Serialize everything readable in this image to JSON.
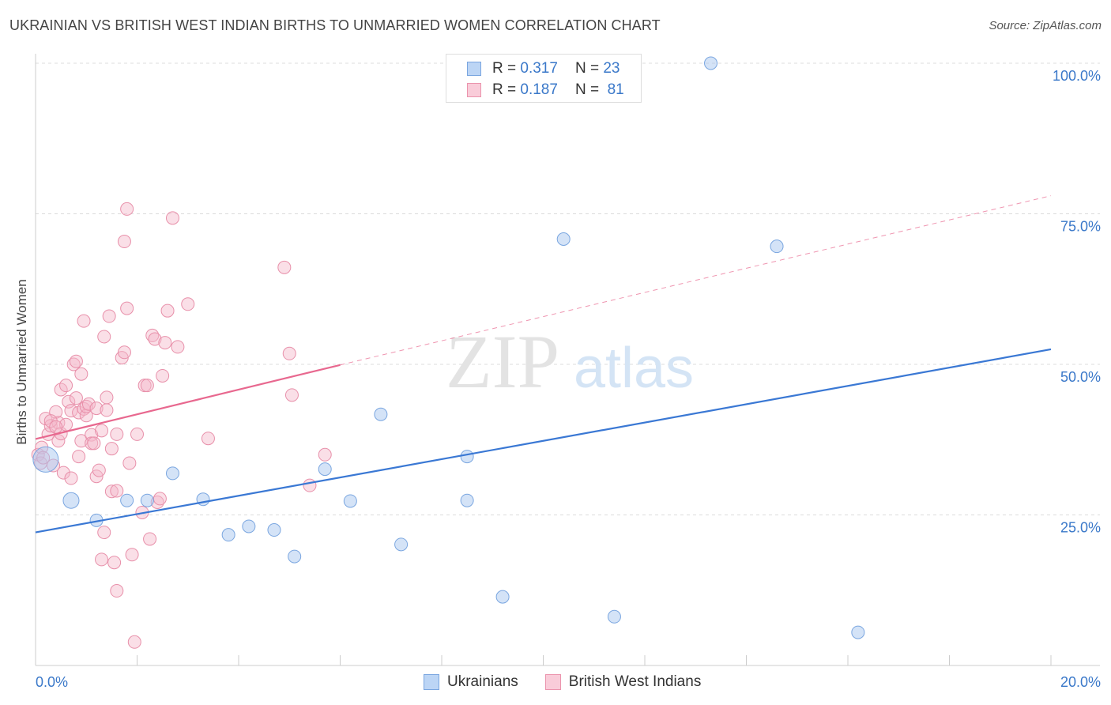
{
  "header": {
    "title": "UKRAINIAN VS BRITISH WEST INDIAN BIRTHS TO UNMARRIED WOMEN CORRELATION CHART",
    "source": "Source: ZipAtlas.com"
  },
  "watermark": {
    "zip": "ZIP",
    "atlas": "atlas"
  },
  "legend": {
    "rows": [
      {
        "r_label": "R =",
        "r_value": "0.317",
        "n_label": "N =",
        "n_value": "23",
        "color": "#a9c8f0"
      },
      {
        "r_label": "R =",
        "r_value": "0.187",
        "n_label": "N =",
        "n_value": "81",
        "color": "#f5b8ca"
      }
    ]
  },
  "bottom_legend": {
    "items": [
      "Ukrainians",
      "British West Indians"
    ]
  },
  "chart_data": {
    "type": "scatter",
    "title": "UKRAINIAN VS BRITISH WEST INDIAN BIRTHS TO UNMARRIED WOMEN CORRELATION CHART",
    "xlabel": "",
    "ylabel": "Births to Unmarried Women",
    "xlim": [
      0,
      20
    ],
    "ylim": [
      0,
      100
    ],
    "x_tick_labels": [
      "0.0%",
      "20.0%"
    ],
    "y_ticks": [
      25,
      50,
      75,
      100
    ],
    "y_tick_labels": [
      "25.0%",
      "50.0%",
      "75.0%",
      "100.0%"
    ],
    "grid": true,
    "legend_position": "top-center",
    "series": [
      {
        "name": "Ukrainians",
        "color": "#3a78d4",
        "fill": "#a9c8f0",
        "points": [
          [
            0.2,
            34.2
          ],
          [
            0.7,
            27.4
          ],
          [
            1.2,
            24.1
          ],
          [
            1.8,
            27.4
          ],
          [
            2.2,
            27.4
          ],
          [
            2.7,
            31.9
          ],
          [
            3.3,
            27.6
          ],
          [
            3.8,
            21.7
          ],
          [
            4.2,
            23.1
          ],
          [
            4.7,
            22.5
          ],
          [
            5.1,
            18.1
          ],
          [
            5.7,
            32.6
          ],
          [
            6.2,
            27.3
          ],
          [
            6.8,
            41.7
          ],
          [
            7.2,
            20.1
          ],
          [
            8.5,
            34.7
          ],
          [
            8.5,
            27.4
          ],
          [
            9.2,
            11.4
          ],
          [
            10.4,
            70.8
          ],
          [
            11.4,
            8.1
          ],
          [
            13.3,
            100.0
          ],
          [
            14.6,
            69.6
          ],
          [
            16.2,
            5.5
          ]
        ],
        "trend": {
          "x": [
            0,
            20
          ],
          "y": [
            22.1,
            52.5
          ]
        }
      },
      {
        "name": "British West Indians",
        "color": "#e8688f",
        "fill": "#f5b8ca",
        "points": [
          [
            0.05,
            35.0
          ],
          [
            0.1,
            33.6
          ],
          [
            0.12,
            36.2
          ],
          [
            0.15,
            34.5
          ],
          [
            0.2,
            41.0
          ],
          [
            0.25,
            38.4
          ],
          [
            0.3,
            39.8
          ],
          [
            0.35,
            33.2
          ],
          [
            0.4,
            42.1
          ],
          [
            0.45,
            40.3
          ],
          [
            0.45,
            37.3
          ],
          [
            0.5,
            38.5
          ],
          [
            0.5,
            45.8
          ],
          [
            0.55,
            32.0
          ],
          [
            0.6,
            40.0
          ],
          [
            0.6,
            46.5
          ],
          [
            0.65,
            43.8
          ],
          [
            0.7,
            31.1
          ],
          [
            0.7,
            42.3
          ],
          [
            0.75,
            50.0
          ],
          [
            0.8,
            50.5
          ],
          [
            0.8,
            44.4
          ],
          [
            0.85,
            34.7
          ],
          [
            0.85,
            42.0
          ],
          [
            0.9,
            37.3
          ],
          [
            0.9,
            48.4
          ],
          [
            0.95,
            57.2
          ],
          [
            0.95,
            42.6
          ],
          [
            1.0,
            41.5
          ],
          [
            1.0,
            43.0
          ],
          [
            1.05,
            43.4
          ],
          [
            1.1,
            38.3
          ],
          [
            1.1,
            36.9
          ],
          [
            1.15,
            36.9
          ],
          [
            1.2,
            42.7
          ],
          [
            1.2,
            31.4
          ],
          [
            1.25,
            32.4
          ],
          [
            1.3,
            39.0
          ],
          [
            1.3,
            17.6
          ],
          [
            1.35,
            54.6
          ],
          [
            1.35,
            22.1
          ],
          [
            1.4,
            44.5
          ],
          [
            1.4,
            42.4
          ],
          [
            1.45,
            58.0
          ],
          [
            1.5,
            36.0
          ],
          [
            1.5,
            28.9
          ],
          [
            1.55,
            17.1
          ],
          [
            1.6,
            38.4
          ],
          [
            1.6,
            29.0
          ],
          [
            1.6,
            12.4
          ],
          [
            1.7,
            51.1
          ],
          [
            1.75,
            52.0
          ],
          [
            1.75,
            70.4
          ],
          [
            1.8,
            75.8
          ],
          [
            1.8,
            59.3
          ],
          [
            1.85,
            33.6
          ],
          [
            1.9,
            18.4
          ],
          [
            1.95,
            3.9
          ],
          [
            2.0,
            38.4
          ],
          [
            2.1,
            25.4
          ],
          [
            2.15,
            46.5
          ],
          [
            2.2,
            46.5
          ],
          [
            2.25,
            21.0
          ],
          [
            2.3,
            54.8
          ],
          [
            2.35,
            54.2
          ],
          [
            2.4,
            27.1
          ],
          [
            2.45,
            27.7
          ],
          [
            2.5,
            48.1
          ],
          [
            2.55,
            53.6
          ],
          [
            2.6,
            58.9
          ],
          [
            2.7,
            74.3
          ],
          [
            2.8,
            52.9
          ],
          [
            3.0,
            60.0
          ],
          [
            3.4,
            37.7
          ],
          [
            4.9,
            66.1
          ],
          [
            5.0,
            51.8
          ],
          [
            5.05,
            44.9
          ],
          [
            5.4,
            29.9
          ],
          [
            5.7,
            35.0
          ],
          [
            0.3,
            40.6
          ],
          [
            0.4,
            39.6
          ]
        ],
        "trend": {
          "x": [
            0,
            6
          ],
          "y": [
            37.6,
            49.9
          ]
        },
        "trend_extension": {
          "x": [
            6,
            20
          ],
          "y": [
            49.9,
            78.0
          ]
        }
      }
    ]
  }
}
